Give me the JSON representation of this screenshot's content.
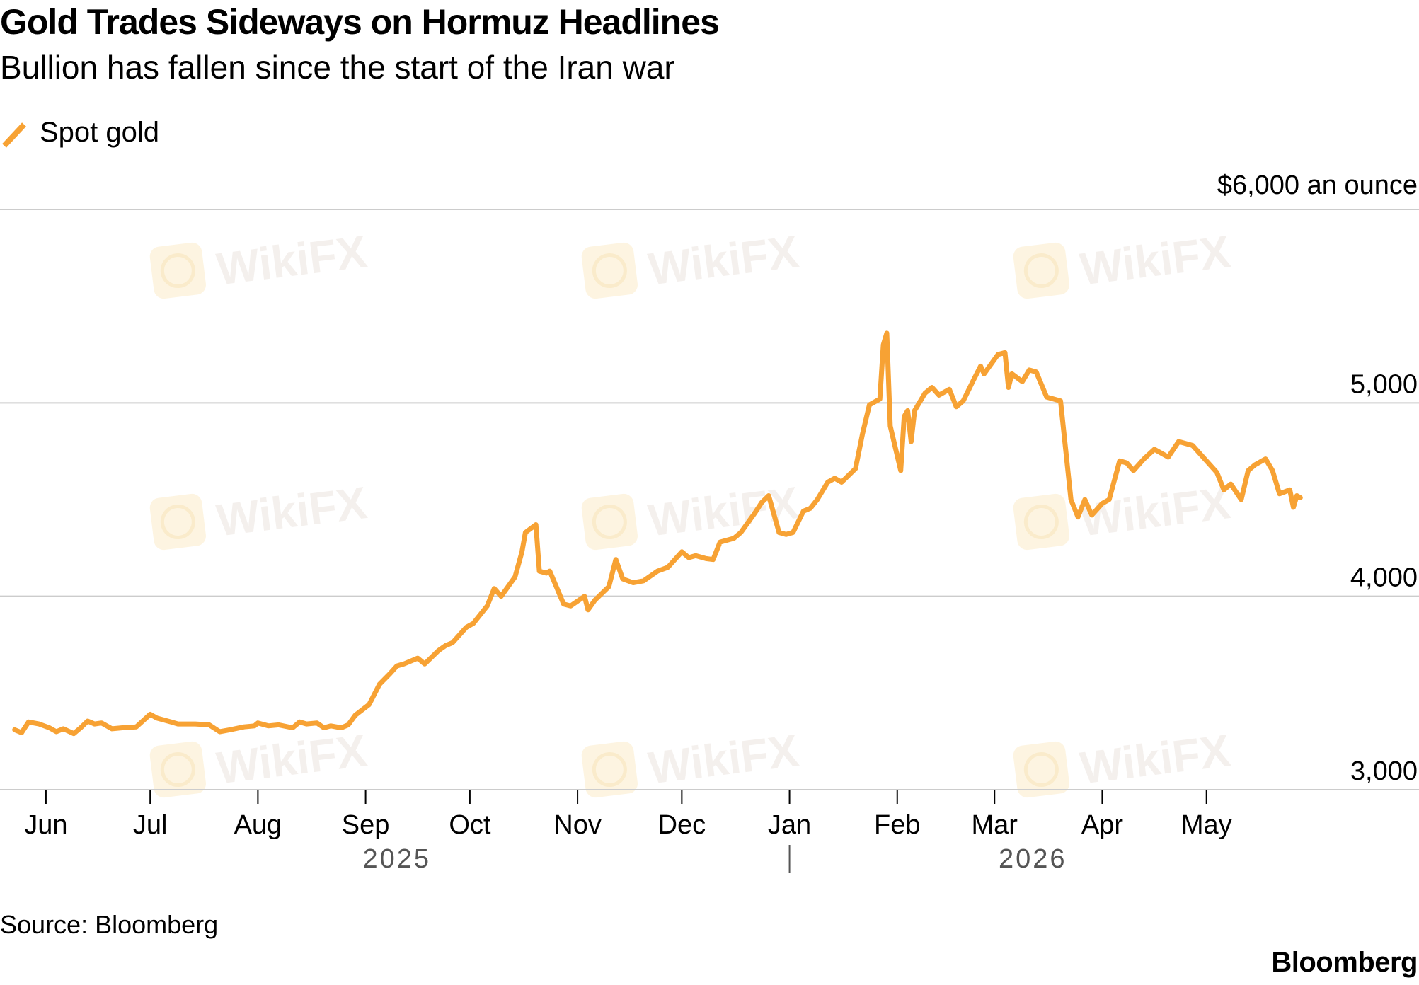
{
  "header": {
    "title": "Gold Trades Sideways on Hormuz Headlines",
    "subtitle": "Bullion has fallen since the start of the Iran war"
  },
  "footer": {
    "source": "Source: Bloomberg",
    "brand": "Bloomberg"
  },
  "watermark": {
    "text": "WikiFX"
  },
  "colors": {
    "series": "#F7A234",
    "grid": "#cccccc",
    "axis": "#000000",
    "year_label": "#555555"
  },
  "chart_data": {
    "type": "line",
    "title": "Gold Trades Sideways on Hormuz Headlines",
    "subtitle": "Bullion has fallen since the start of the Iran war",
    "unit_label": "$6,000 an ounce",
    "ylim": [
      3000,
      6000
    ],
    "xlim": [
      "2025-05-20",
      "2026-05-31"
    ],
    "y_ticks": [
      {
        "value": 3000,
        "label": "3,000"
      },
      {
        "value": 4000,
        "label": "4,000"
      },
      {
        "value": 5000,
        "label": "5,000"
      }
    ],
    "x_ticks": [
      {
        "date": "2025-06-01",
        "label": "Jun"
      },
      {
        "date": "2025-07-01",
        "label": "Jul"
      },
      {
        "date": "2025-08-01",
        "label": "Aug"
      },
      {
        "date": "2025-09-01",
        "label": "Sep"
      },
      {
        "date": "2025-10-01",
        "label": "Oct"
      },
      {
        "date": "2025-11-01",
        "label": "Nov"
      },
      {
        "date": "2025-12-01",
        "label": "Dec"
      },
      {
        "date": "2026-01-01",
        "label": "Jan"
      },
      {
        "date": "2026-02-01",
        "label": "Feb"
      },
      {
        "date": "2026-03-01",
        "label": "Mar"
      },
      {
        "date": "2026-04-01",
        "label": "Apr"
      },
      {
        "date": "2026-05-01",
        "label": "May"
      }
    ],
    "years": [
      {
        "label": "2025",
        "date": "2025-09-10"
      },
      {
        "label": "2026",
        "date": "2026-03-12"
      }
    ],
    "year_divider": "2026-01-01",
    "grid": true,
    "legend_position": "top-left",
    "series": [
      {
        "name": "Spot gold",
        "color": "#F7A234",
        "points": [
          [
            "2025-05-23",
            3310
          ],
          [
            "2025-05-25",
            3295
          ],
          [
            "2025-05-27",
            3350
          ],
          [
            "2025-05-30",
            3340
          ],
          [
            "2025-06-02",
            3320
          ],
          [
            "2025-06-04",
            3300
          ],
          [
            "2025-06-06",
            3315
          ],
          [
            "2025-06-09",
            3290
          ],
          [
            "2025-06-11",
            3320
          ],
          [
            "2025-06-13",
            3355
          ],
          [
            "2025-06-15",
            3340
          ],
          [
            "2025-06-17",
            3345
          ],
          [
            "2025-06-20",
            3315
          ],
          [
            "2025-06-23",
            3320
          ],
          [
            "2025-06-27",
            3325
          ],
          [
            "2025-07-01",
            3390
          ],
          [
            "2025-07-03",
            3370
          ],
          [
            "2025-07-07",
            3350
          ],
          [
            "2025-07-09",
            3340
          ],
          [
            "2025-07-14",
            3340
          ],
          [
            "2025-07-18",
            3335
          ],
          [
            "2025-07-21",
            3300
          ],
          [
            "2025-07-24",
            3310
          ],
          [
            "2025-07-28",
            3325
          ],
          [
            "2025-07-31",
            3330
          ],
          [
            "2025-08-01",
            3345
          ],
          [
            "2025-08-04",
            3330
          ],
          [
            "2025-08-07",
            3335
          ],
          [
            "2025-08-11",
            3320
          ],
          [
            "2025-08-13",
            3350
          ],
          [
            "2025-08-15",
            3340
          ],
          [
            "2025-08-18",
            3345
          ],
          [
            "2025-08-20",
            3320
          ],
          [
            "2025-08-22",
            3330
          ],
          [
            "2025-08-25",
            3320
          ],
          [
            "2025-08-27",
            3335
          ],
          [
            "2025-08-29",
            3385
          ],
          [
            "2025-09-02",
            3440
          ],
          [
            "2025-09-05",
            3545
          ],
          [
            "2025-09-08",
            3600
          ],
          [
            "2025-09-10",
            3640
          ],
          [
            "2025-09-12",
            3650
          ],
          [
            "2025-09-16",
            3680
          ],
          [
            "2025-09-18",
            3650
          ],
          [
            "2025-09-22",
            3720
          ],
          [
            "2025-09-24",
            3745
          ],
          [
            "2025-09-26",
            3760
          ],
          [
            "2025-09-30",
            3840
          ],
          [
            "2025-10-02",
            3860
          ],
          [
            "2025-10-06",
            3950
          ],
          [
            "2025-10-08",
            4040
          ],
          [
            "2025-10-10",
            4000
          ],
          [
            "2025-10-14",
            4100
          ],
          [
            "2025-10-16",
            4230
          ],
          [
            "2025-10-17",
            4330
          ],
          [
            "2025-10-20",
            4370
          ],
          [
            "2025-10-21",
            4130
          ],
          [
            "2025-10-23",
            4120
          ],
          [
            "2025-10-24",
            4130
          ],
          [
            "2025-10-28",
            3960
          ],
          [
            "2025-10-30",
            3950
          ],
          [
            "2025-11-03",
            4000
          ],
          [
            "2025-11-04",
            3930
          ],
          [
            "2025-11-06",
            3980
          ],
          [
            "2025-11-10",
            4050
          ],
          [
            "2025-11-12",
            4190
          ],
          [
            "2025-11-14",
            4090
          ],
          [
            "2025-11-17",
            4070
          ],
          [
            "2025-11-20",
            4080
          ],
          [
            "2025-11-24",
            4130
          ],
          [
            "2025-11-27",
            4150
          ],
          [
            "2025-12-01",
            4230
          ],
          [
            "2025-12-03",
            4200
          ],
          [
            "2025-12-05",
            4210
          ],
          [
            "2025-12-08",
            4195
          ],
          [
            "2025-12-10",
            4190
          ],
          [
            "2025-12-12",
            4280
          ],
          [
            "2025-12-16",
            4300
          ],
          [
            "2025-12-18",
            4330
          ],
          [
            "2025-12-22",
            4430
          ],
          [
            "2025-12-24",
            4485
          ],
          [
            "2025-12-26",
            4520
          ],
          [
            "2025-12-29",
            4330
          ],
          [
            "2025-12-31",
            4320
          ],
          [
            "2026-01-02",
            4330
          ],
          [
            "2026-01-05",
            4440
          ],
          [
            "2026-01-07",
            4455
          ],
          [
            "2026-01-09",
            4500
          ],
          [
            "2026-01-12",
            4590
          ],
          [
            "2026-01-14",
            4610
          ],
          [
            "2026-01-16",
            4590
          ],
          [
            "2026-01-20",
            4660
          ],
          [
            "2026-01-22",
            4840
          ],
          [
            "2026-01-24",
            4990
          ],
          [
            "2026-01-27",
            5020
          ],
          [
            "2026-01-28",
            5300
          ],
          [
            "2026-01-29",
            5360
          ],
          [
            "2026-01-30",
            4880
          ],
          [
            "2026-02-02",
            4650
          ],
          [
            "2026-02-03",
            4930
          ],
          [
            "2026-02-04",
            4960
          ],
          [
            "2026-02-05",
            4800
          ],
          [
            "2026-02-06",
            4960
          ],
          [
            "2026-02-09",
            5050
          ],
          [
            "2026-02-11",
            5080
          ],
          [
            "2026-02-13",
            5040
          ],
          [
            "2026-02-16",
            5070
          ],
          [
            "2026-02-18",
            4980
          ],
          [
            "2026-02-20",
            5010
          ],
          [
            "2026-02-23",
            5120
          ],
          [
            "2026-02-25",
            5190
          ],
          [
            "2026-02-26",
            5150
          ],
          [
            "2026-03-02",
            5250
          ],
          [
            "2026-03-04",
            5260
          ],
          [
            "2026-03-05",
            5080
          ],
          [
            "2026-03-06",
            5150
          ],
          [
            "2026-03-09",
            5110
          ],
          [
            "2026-03-11",
            5170
          ],
          [
            "2026-03-13",
            5160
          ],
          [
            "2026-03-16",
            5030
          ],
          [
            "2026-03-18",
            5020
          ],
          [
            "2026-03-20",
            5010
          ],
          [
            "2026-03-23",
            4500
          ],
          [
            "2026-03-25",
            4410
          ],
          [
            "2026-03-27",
            4500
          ],
          [
            "2026-03-29",
            4420
          ],
          [
            "2026-04-01",
            4480
          ],
          [
            "2026-04-03",
            4500
          ],
          [
            "2026-04-06",
            4700
          ],
          [
            "2026-04-08",
            4690
          ],
          [
            "2026-04-10",
            4650
          ],
          [
            "2026-04-13",
            4710
          ],
          [
            "2026-04-16",
            4760
          ],
          [
            "2026-04-20",
            4720
          ],
          [
            "2026-04-23",
            4800
          ],
          [
            "2026-04-27",
            4780
          ],
          [
            "2026-04-30",
            4720
          ],
          [
            "2026-05-02",
            4680
          ],
          [
            "2026-05-04",
            4640
          ],
          [
            "2026-05-06",
            4550
          ],
          [
            "2026-05-08",
            4580
          ],
          [
            "2026-05-11",
            4500
          ],
          [
            "2026-05-13",
            4650
          ],
          [
            "2026-05-15",
            4680
          ],
          [
            "2026-05-18",
            4710
          ],
          [
            "2026-05-20",
            4650
          ],
          [
            "2026-05-22",
            4530
          ],
          [
            "2026-05-25",
            4550
          ],
          [
            "2026-05-26",
            4460
          ],
          [
            "2026-05-27",
            4520
          ],
          [
            "2026-05-28",
            4510
          ]
        ]
      }
    ]
  }
}
